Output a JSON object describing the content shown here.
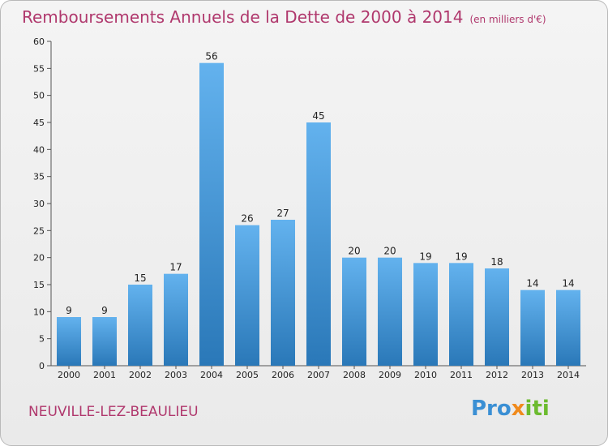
{
  "header": {
    "title": "Remboursements Annuels de la Dette de 2000 à 2014",
    "subtitle": "(en milliers d'€)"
  },
  "footer": {
    "commune": "NEUVILLE-LEZ-BEAULIEU",
    "logo": {
      "part1": "Pro",
      "part2": "x",
      "part3": "iti"
    }
  },
  "colors": {
    "title": "#b0386d",
    "bar_top": "#63b2ee",
    "bar_bottom": "#2a78b8"
  },
  "chart_data": {
    "type": "bar",
    "title": "Remboursements Annuels de la Dette de 2000 à 2014",
    "xlabel": "",
    "ylabel": "",
    "ylim": [
      0,
      60
    ],
    "ytick_step": 5,
    "grid": false,
    "categories": [
      "2000",
      "2001",
      "2002",
      "2003",
      "2004",
      "2005",
      "2006",
      "2007",
      "2008",
      "2009",
      "2010",
      "2011",
      "2012",
      "2013",
      "2014"
    ],
    "values": [
      9,
      9,
      15,
      17,
      56,
      26,
      27,
      45,
      20,
      20,
      19,
      19,
      18,
      14,
      14
    ]
  }
}
